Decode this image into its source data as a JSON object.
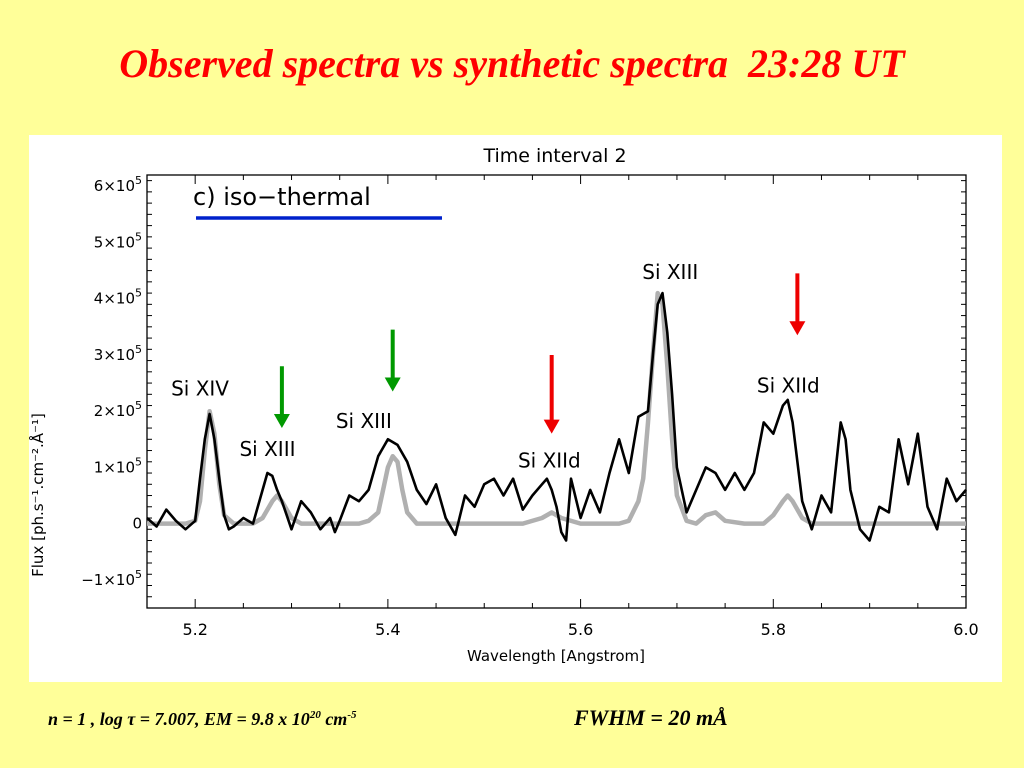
{
  "slide": {
    "title": "Observed spectra vs synthetic spectra  23:28 UT"
  },
  "footer": {
    "n_text": "n = 1 ,  log ",
    "tau_symbol": "τ",
    "after_tau": " = 7.007,  EM = 9.8 x 10",
    "em_exponent": "20",
    "em_unit": " cm",
    "em_unit_exponent": "-5",
    "fwhm": "FWHM = 20 mÅ"
  },
  "chart_data": {
    "type": "line",
    "title": "Time interval 2",
    "panel_label": "c) iso−thermal",
    "xlabel": "Wavelength  [Angstrom]",
    "ylabel": "Flux  [ph.s⁻¹.cm⁻².Å⁻¹]",
    "xlim": [
      5.15,
      6.0
    ],
    "ylim": [
      -150000,
      620000
    ],
    "x_ticks": [
      5.2,
      5.4,
      5.6,
      5.8,
      6.0
    ],
    "x_tick_labels": [
      "5.2",
      "5.4",
      "5.6",
      "5.8",
      "6.0"
    ],
    "y_ticks": [
      -100000,
      0,
      100000,
      200000,
      300000,
      400000,
      500000,
      600000
    ],
    "y_tick_labels": [
      {
        "mantissa": "−1×10",
        "exp": "5"
      },
      {
        "mantissa": "0",
        "exp": ""
      },
      {
        "mantissa": "1×10",
        "exp": "5"
      },
      {
        "mantissa": "2×10",
        "exp": "5"
      },
      {
        "mantissa": "3×10",
        "exp": "5"
      },
      {
        "mantissa": "4×10",
        "exp": "5"
      },
      {
        "mantissa": "5×10",
        "exp": "5"
      },
      {
        "mantissa": "6×10",
        "exp": "5"
      }
    ],
    "colors": {
      "observed": "#000000",
      "synthetic": "#b0b0b0",
      "legend_line": "#0022cc",
      "arrow_green": "#009900",
      "arrow_red": "#ee0000"
    },
    "series": [
      {
        "id": "observed",
        "x": [
          5.15,
          5.16,
          5.17,
          5.18,
          5.19,
          5.2,
          5.205,
          5.21,
          5.215,
          5.22,
          5.225,
          5.23,
          5.235,
          5.24,
          5.25,
          5.26,
          5.27,
          5.275,
          5.28,
          5.285,
          5.29,
          5.295,
          5.3,
          5.31,
          5.32,
          5.33,
          5.34,
          5.345,
          5.35,
          5.36,
          5.37,
          5.38,
          5.39,
          5.4,
          5.41,
          5.42,
          5.43,
          5.44,
          5.45,
          5.46,
          5.47,
          5.48,
          5.49,
          5.5,
          5.51,
          5.52,
          5.53,
          5.54,
          5.55,
          5.56,
          5.565,
          5.57,
          5.575,
          5.58,
          5.585,
          5.59,
          5.6,
          5.61,
          5.62,
          5.63,
          5.64,
          5.645,
          5.65,
          5.66,
          5.67,
          5.675,
          5.68,
          5.685,
          5.69,
          5.695,
          5.7,
          5.71,
          5.72,
          5.73,
          5.74,
          5.75,
          5.76,
          5.77,
          5.78,
          5.79,
          5.8,
          5.81,
          5.815,
          5.82,
          5.83,
          5.84,
          5.85,
          5.86,
          5.87,
          5.875,
          5.88,
          5.89,
          5.9,
          5.91,
          5.92,
          5.93,
          5.94,
          5.95,
          5.96,
          5.97,
          5.98,
          5.99,
          6.0
        ],
        "y": [
          10000,
          -5000,
          25000,
          5000,
          -10000,
          5000,
          80000,
          150000,
          195000,
          150000,
          80000,
          15000,
          -10000,
          -5000,
          10000,
          0,
          60000,
          90000,
          85000,
          60000,
          40000,
          15000,
          -10000,
          40000,
          20000,
          -10000,
          10000,
          -15000,
          5000,
          50000,
          40000,
          60000,
          120000,
          150000,
          140000,
          110000,
          60000,
          35000,
          70000,
          10000,
          -20000,
          50000,
          30000,
          70000,
          80000,
          50000,
          80000,
          25000,
          50000,
          70000,
          80000,
          60000,
          30000,
          -15000,
          -30000,
          80000,
          10000,
          60000,
          20000,
          90000,
          150000,
          120000,
          90000,
          190000,
          200000,
          300000,
          390000,
          410000,
          340000,
          230000,
          100000,
          20000,
          60000,
          100000,
          90000,
          60000,
          90000,
          60000,
          90000,
          180000,
          160000,
          210000,
          220000,
          180000,
          40000,
          -10000,
          50000,
          20000,
          180000,
          150000,
          60000,
          -10000,
          -30000,
          30000,
          20000,
          150000,
          70000,
          160000,
          30000,
          -10000,
          80000,
          40000,
          60000
        ]
      },
      {
        "id": "synthetic",
        "x": [
          5.15,
          5.19,
          5.2,
          5.205,
          5.21,
          5.215,
          5.22,
          5.225,
          5.23,
          5.24,
          5.26,
          5.27,
          5.28,
          5.285,
          5.29,
          5.3,
          5.31,
          5.33,
          5.35,
          5.37,
          5.38,
          5.39,
          5.395,
          5.4,
          5.405,
          5.41,
          5.415,
          5.42,
          5.43,
          5.46,
          5.5,
          5.54,
          5.56,
          5.57,
          5.58,
          5.6,
          5.62,
          5.64,
          5.65,
          5.66,
          5.665,
          5.67,
          5.675,
          5.68,
          5.685,
          5.69,
          5.695,
          5.7,
          5.71,
          5.72,
          5.73,
          5.74,
          5.75,
          5.77,
          5.79,
          5.8,
          5.81,
          5.815,
          5.82,
          5.83,
          5.84,
          5.87,
          5.9,
          5.95,
          6.0
        ],
        "y": [
          0,
          0,
          5000,
          40000,
          130000,
          200000,
          160000,
          70000,
          15000,
          0,
          0,
          10000,
          40000,
          50000,
          40000,
          10000,
          0,
          0,
          0,
          0,
          5000,
          20000,
          60000,
          100000,
          120000,
          110000,
          60000,
          20000,
          0,
          0,
          0,
          0,
          10000,
          20000,
          10000,
          0,
          0,
          0,
          5000,
          40000,
          80000,
          180000,
          300000,
          410000,
          390000,
          280000,
          150000,
          50000,
          5000,
          0,
          15000,
          20000,
          5000,
          0,
          0,
          15000,
          40000,
          50000,
          40000,
          10000,
          0,
          0,
          0,
          0,
          0
        ]
      }
    ],
    "annotations": [
      {
        "label": "Si  XIV",
        "x": 5.175,
        "y": 228000
      },
      {
        "label": "Si  XIII",
        "x": 5.246,
        "y": 120000
      },
      {
        "label": "Si  XIII",
        "x": 5.346,
        "y": 170000
      },
      {
        "label": "Si  XIId",
        "x": 5.535,
        "y": 100000
      },
      {
        "label": "Si  XIII",
        "x": 5.664,
        "y": 435000
      },
      {
        "label": "Si  XIId",
        "x": 5.783,
        "y": 233000
      }
    ],
    "arrows": [
      {
        "color": "green",
        "x": 5.29,
        "y_top": 280000,
        "y_tip": 170000
      },
      {
        "color": "green",
        "x": 5.405,
        "y_top": 345000,
        "y_tip": 235000
      },
      {
        "color": "red",
        "x": 5.57,
        "y_top": 300000,
        "y_tip": 160000
      },
      {
        "color": "red",
        "x": 5.825,
        "y_top": 445000,
        "y_tip": 335000
      }
    ]
  }
}
